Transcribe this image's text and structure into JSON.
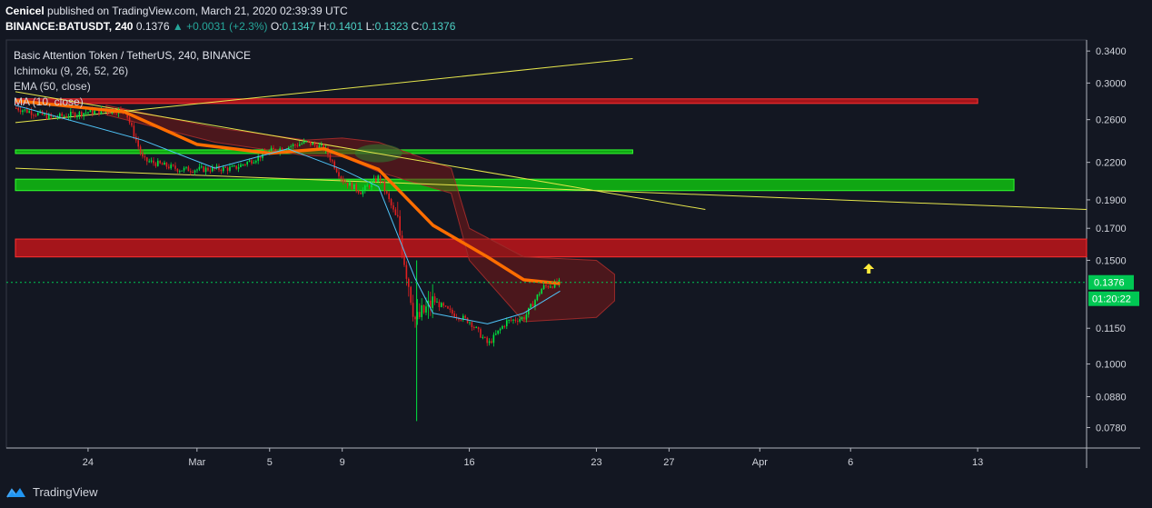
{
  "header": {
    "author": "Cenicel",
    "published": "published on TradingView.com, March 21, 2020 02:39:39 UTC",
    "symbol": "BINANCE:BATUSDT, 240",
    "last": "0.1376",
    "change": "+0.0031 (+2.3%)",
    "o_label": "O:",
    "o": "0.1347",
    "h_label": "H:",
    "h": "0.1401",
    "l_label": "L:",
    "l": "0.1323",
    "c_label": "C:",
    "c": "0.1376"
  },
  "legend": {
    "title": "Basic Attention Token / TetherUS, 240, BINANCE",
    "ichimoku": "Ichimoku (9, 26, 52, 26)",
    "ema": "EMA (50, close)",
    "ma": "MA (10, close)"
  },
  "footer": {
    "brand": "TradingView"
  },
  "colors": {
    "background": "#131722",
    "up": "#26a69a",
    "candle_up": "#00e640",
    "candle_down": "#e02020",
    "ema": "#ff6d00",
    "ma": "#4fc3f7",
    "resistance_zone": "#c0151a",
    "support_zone": "#10c010",
    "trendline": "#e6e64c",
    "price_label": "#00c853"
  },
  "chart_data": {
    "type": "candlestick",
    "title": "Basic Attention Token / TetherUS, 240, BINANCE",
    "y_scale": "log",
    "ylim": [
      0.072,
      0.355
    ],
    "y_ticks": [
      "0.3400",
      "0.3000",
      "0.2600",
      "0.2200",
      "0.1900",
      "0.1700",
      "0.1500",
      "0.1150",
      "0.1000",
      "0.0880",
      "0.0780"
    ],
    "x_ticks": [
      "24",
      "Mar",
      "5",
      "9",
      "16",
      "23",
      "27",
      "Apr",
      "6",
      "13"
    ],
    "current_price": "0.1376",
    "countdown": "01:20:22",
    "price_path": [
      [
        "2020-02-20",
        0.272
      ],
      [
        "2020-02-22",
        0.262
      ],
      [
        "2020-02-24",
        0.268
      ],
      [
        "2020-02-26",
        0.27
      ],
      [
        "2020-02-27",
        0.222
      ],
      [
        "2020-02-29",
        0.214
      ],
      [
        "2020-03-01",
        0.214
      ],
      [
        "2020-03-03",
        0.215
      ],
      [
        "2020-03-04",
        0.222
      ],
      [
        "2020-03-05",
        0.23
      ],
      [
        "2020-03-07",
        0.238
      ],
      [
        "2020-03-08",
        0.232
      ],
      [
        "2020-03-09",
        0.205
      ],
      [
        "2020-03-10",
        0.196
      ],
      [
        "2020-03-11",
        0.208
      ],
      [
        "2020-03-12",
        0.175
      ],
      [
        "2020-03-13",
        0.118
      ],
      [
        "2020-03-14",
        0.128
      ],
      [
        "2020-03-15",
        0.122
      ],
      [
        "2020-03-16",
        0.118
      ],
      [
        "2020-03-17",
        0.108
      ],
      [
        "2020-03-18",
        0.118
      ],
      [
        "2020-03-19",
        0.12
      ],
      [
        "2020-03-20",
        0.135
      ],
      [
        "2020-03-21",
        0.1376
      ]
    ],
    "ema50": [
      [
        "2020-02-20",
        0.28
      ],
      [
        "2020-02-26",
        0.268
      ],
      [
        "2020-03-01",
        0.236
      ],
      [
        "2020-03-05",
        0.228
      ],
      [
        "2020-03-08",
        0.232
      ],
      [
        "2020-03-11",
        0.214
      ],
      [
        "2020-03-14",
        0.172
      ],
      [
        "2020-03-17",
        0.152
      ],
      [
        "2020-03-19",
        0.139
      ],
      [
        "2020-03-21",
        0.137
      ]
    ],
    "ma10": [
      [
        "2020-02-20",
        0.275
      ],
      [
        "2020-02-27",
        0.24
      ],
      [
        "2020-03-02",
        0.215
      ],
      [
        "2020-03-06",
        0.232
      ],
      [
        "2020-03-09",
        0.214
      ],
      [
        "2020-03-11",
        0.2
      ],
      [
        "2020-03-13",
        0.14
      ],
      [
        "2020-03-14",
        0.122
      ],
      [
        "2020-03-17",
        0.117
      ],
      [
        "2020-03-19",
        0.122
      ],
      [
        "2020-03-21",
        0.133
      ]
    ],
    "cloud_upper": [
      [
        "2020-02-25",
        0.275
      ],
      [
        "2020-03-02",
        0.252
      ],
      [
        "2020-03-07",
        0.24
      ],
      [
        "2020-03-09",
        0.242
      ],
      [
        "2020-03-11",
        0.238
      ],
      [
        "2020-03-15",
        0.215
      ],
      [
        "2020-03-16",
        0.17
      ],
      [
        "2020-03-19",
        0.152
      ],
      [
        "2020-03-23",
        0.15
      ],
      [
        "2020-03-24",
        0.142
      ]
    ],
    "cloud_lower": [
      [
        "2020-02-25",
        0.265
      ],
      [
        "2020-03-02",
        0.238
      ],
      [
        "2020-03-07",
        0.226
      ],
      [
        "2020-03-09",
        0.225
      ],
      [
        "2020-03-11",
        0.212
      ],
      [
        "2020-03-15",
        0.195
      ],
      [
        "2020-03-16",
        0.15
      ],
      [
        "2020-03-19",
        0.118
      ],
      [
        "2020-03-23",
        0.12
      ],
      [
        "2020-03-24",
        0.128
      ]
    ],
    "zones": [
      {
        "name": "resistance",
        "top": 0.282,
        "bottom": 0.277,
        "from": "2020-02-20",
        "to": "2020-04-13"
      },
      {
        "name": "support",
        "top": 0.231,
        "bottom": 0.228,
        "from": "2020-02-20",
        "to": "2020-03-25"
      },
      {
        "name": "support",
        "top": 0.206,
        "bottom": 0.197,
        "from": "2020-02-20",
        "to": "2020-04-15"
      },
      {
        "name": "resistance",
        "top": 0.163,
        "bottom": 0.152,
        "from": "2020-02-20",
        "to": "2020-04-19"
      }
    ],
    "trendlines": [
      [
        [
          "2020-02-20",
          0.257
        ],
        [
          "2020-03-25",
          0.33
        ]
      ],
      [
        [
          "2020-02-20",
          0.29
        ],
        [
          "2020-03-29",
          0.183
        ]
      ],
      [
        [
          "2020-02-20",
          0.215
        ],
        [
          "2020-04-19",
          0.183
        ]
      ]
    ],
    "markers": [
      {
        "type": "arrow-up",
        "date": "2020-04-07",
        "price": 0.145
      }
    ]
  }
}
